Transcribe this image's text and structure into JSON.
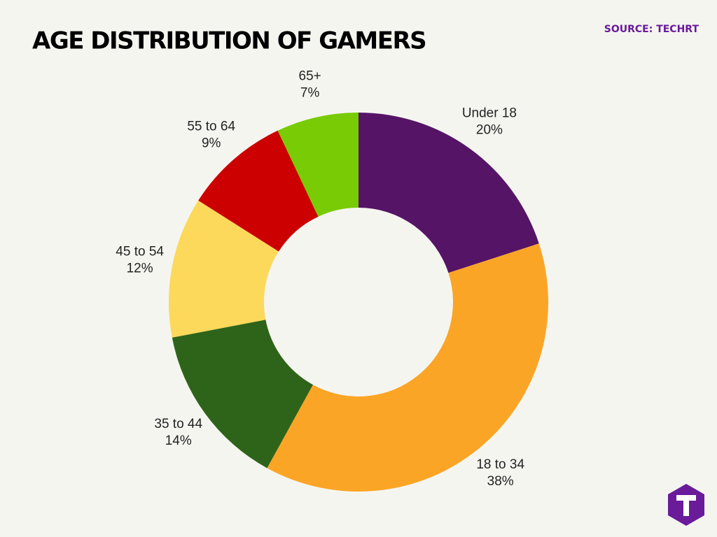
{
  "chart_data": {
    "type": "donut",
    "title": "AGE DISTRIBUTION OF GAMERS",
    "source": "SOURCE: TECHRT",
    "categories": [
      "Under 18",
      "18 to 34",
      "35 to 44",
      "45 to 54",
      "55 to 64",
      "65+"
    ],
    "values": [
      20,
      38,
      14,
      12,
      9,
      7
    ],
    "value_labels": [
      "20%",
      "38%",
      "14%",
      "12%",
      "9%",
      "7%"
    ],
    "colors": [
      "#561466",
      "#fba526",
      "#2e6419",
      "#fcd95a",
      "#cc0000",
      "#78cb05"
    ]
  }
}
